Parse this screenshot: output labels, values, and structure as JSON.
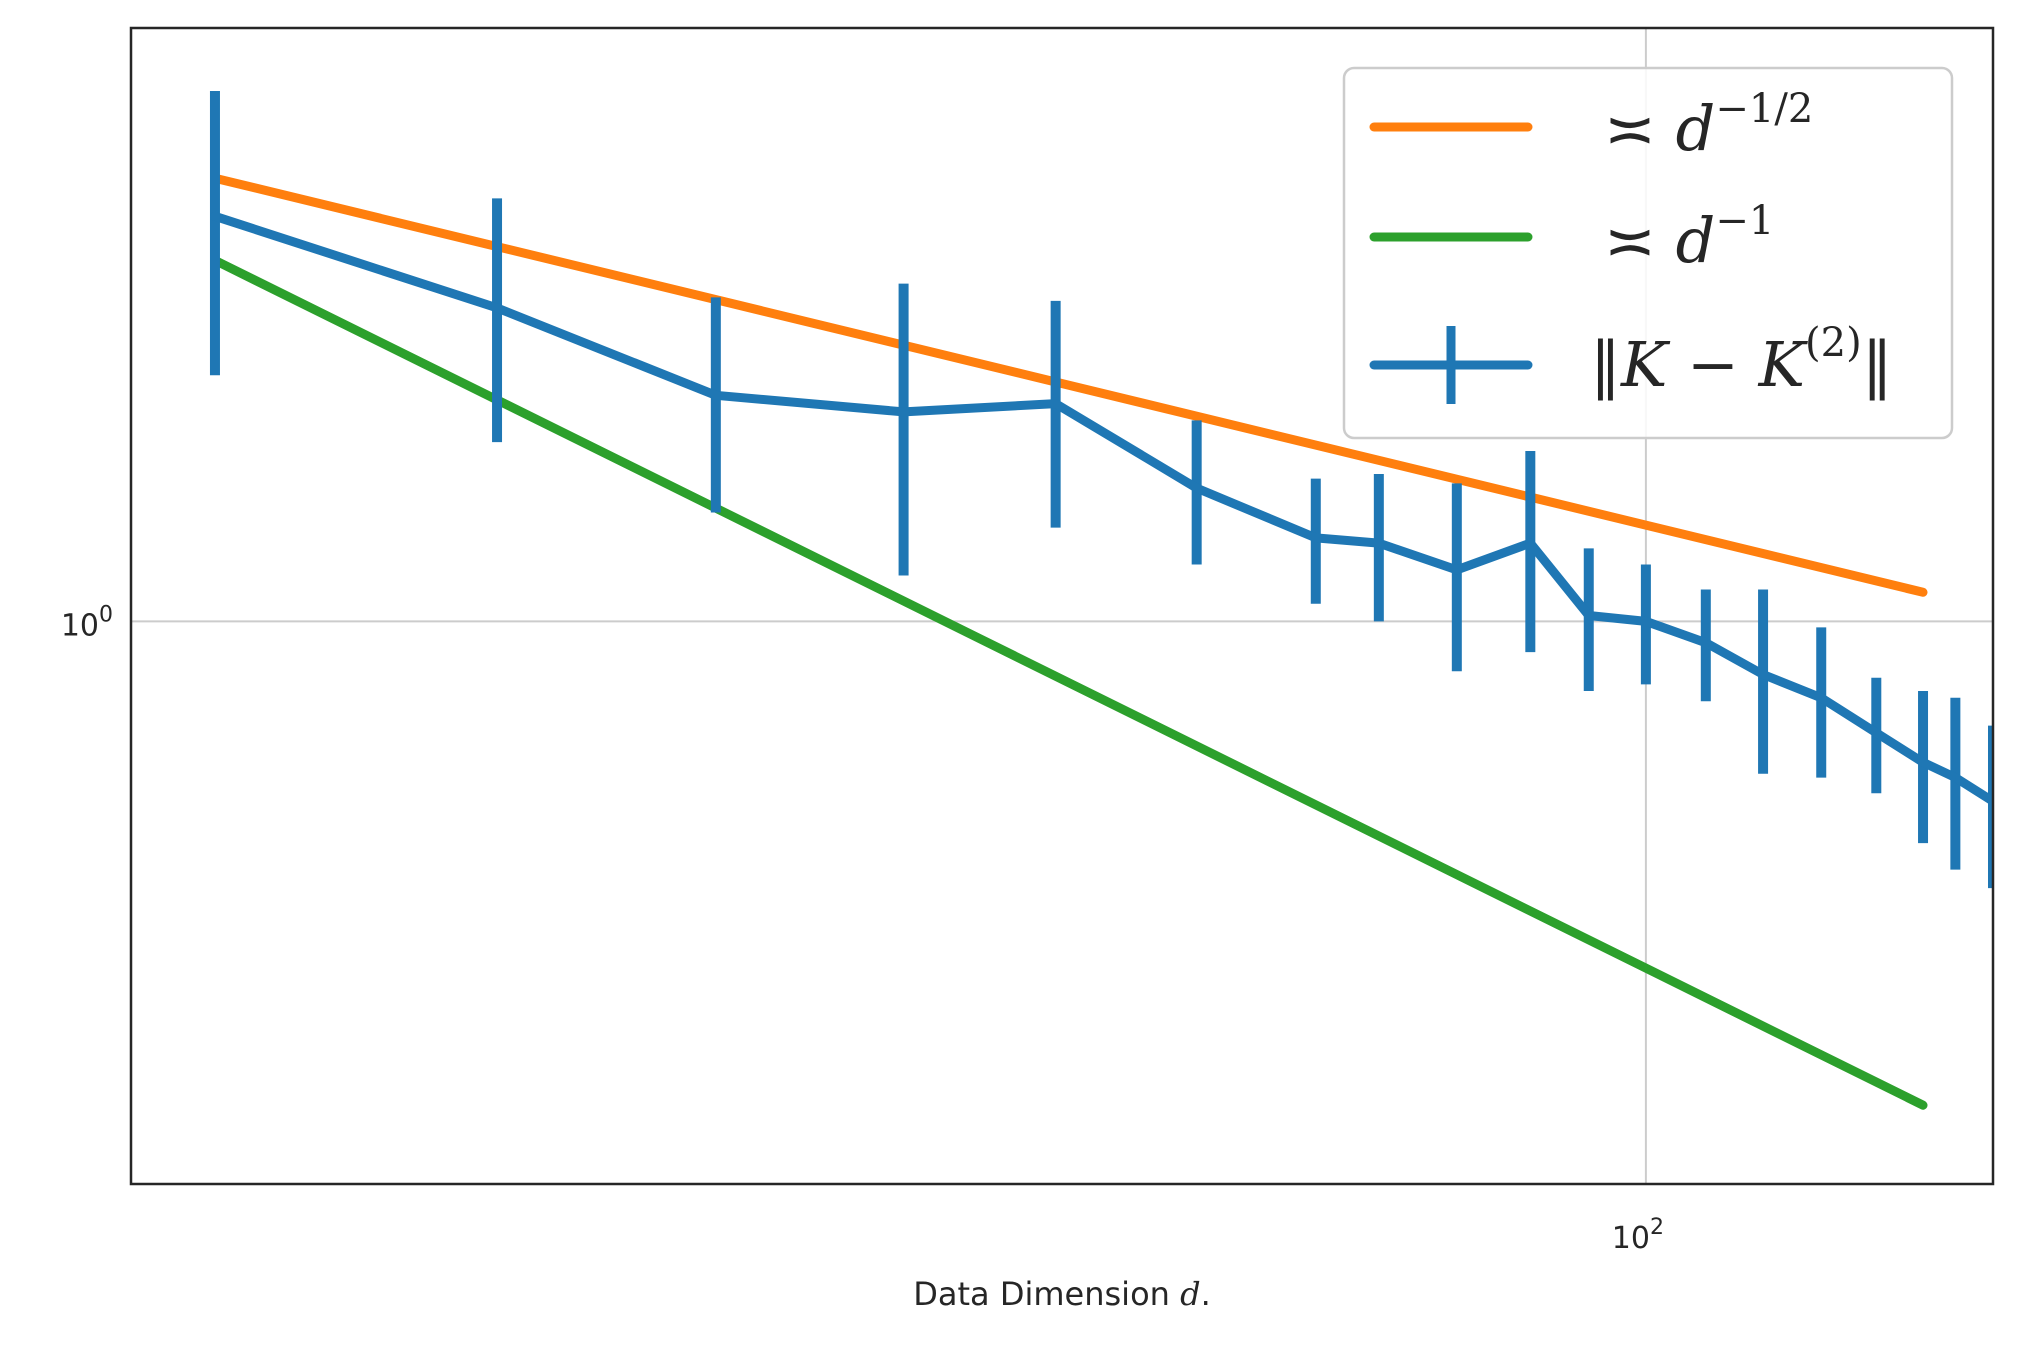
{
  "chart_data": {
    "type": "line",
    "title": "",
    "xlabel": "Data Dimension d.",
    "xlabel_parts": {
      "text": "Data Dimension ",
      "var": "d",
      "suffix": "."
    },
    "ylabel": "",
    "xscale": "log",
    "yscale": "log",
    "xlim": [
      4.55,
      203
    ],
    "ylim": [
      0.39,
      2.7
    ],
    "grid": true,
    "legend_position": "top-right",
    "x_ticks": [
      {
        "value": 100,
        "base": "10",
        "exp": "2"
      }
    ],
    "y_ticks": [
      {
        "value": 1,
        "base": "10",
        "exp": "0"
      }
    ],
    "series": [
      {
        "name": "≍ d^{-1/2}",
        "legend": {
          "prefix": "≍ ",
          "base": "d",
          "exp": "−1/2"
        },
        "kind": "line",
        "color": "#ff7f0e",
        "x": [
          5.4,
          176
        ],
        "y": [
          2.1,
          1.05
        ]
      },
      {
        "name": "≍ d^{-1}",
        "legend": {
          "prefix": "≍ ",
          "base": "d",
          "exp": "−1"
        },
        "kind": "line",
        "color": "#2ca02c",
        "x": [
          5.4,
          176
        ],
        "y": [
          1.83,
          0.445
        ]
      },
      {
        "name": "‖K − K^{(2)}‖",
        "legend": {
          "open": "‖",
          "main": "K − K",
          "exp": "(2)",
          "close": "‖"
        },
        "kind": "errorbar",
        "color": "#1f77b4",
        "x": [
          5.4,
          9.6,
          15,
          22,
          30,
          40,
          51,
          58,
          68,
          79,
          89,
          100,
          113,
          127,
          143,
          160,
          176,
          188,
          203
        ],
        "y": [
          1.97,
          1.69,
          1.46,
          1.42,
          1.44,
          1.25,
          1.15,
          1.14,
          1.09,
          1.14,
          1.01,
          1.0,
          0.965,
          0.915,
          0.88,
          0.83,
          0.79,
          0.77,
          0.74
        ],
        "yerr": [
          0.46,
          0.34,
          0.26,
          0.34,
          0.27,
          0.15,
          0.12,
          0.14,
          0.17,
          0.19,
          0.12,
          0.1,
          0.09,
          0.14,
          0.11,
          0.08,
          0.1,
          0.11,
          0.1
        ]
      }
    ]
  }
}
